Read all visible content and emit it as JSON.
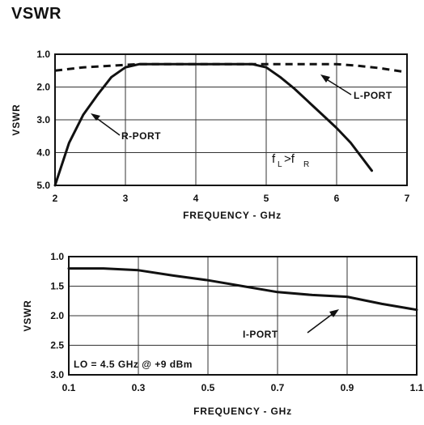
{
  "page_title": "VSWR",
  "chart_data": [
    {
      "type": "line",
      "title": "",
      "xlabel": "FREQUENCY - GHz",
      "ylabel": "VSWR",
      "xlim": [
        2,
        7
      ],
      "ylim": [
        1.0,
        5.0
      ],
      "y_inverted": true,
      "grid": true,
      "x_ticks": [
        "2",
        "3",
        "4",
        "5",
        "6",
        "7"
      ],
      "y_ticks": [
        "1.0",
        "2.0",
        "3.0",
        "4.0",
        "5.0"
      ],
      "series": [
        {
          "name": "R-PORT",
          "style": "solid",
          "x": [
            2.0,
            2.2,
            2.4,
            2.6,
            2.8,
            3.0,
            3.2,
            3.6,
            4.0,
            4.4,
            4.8,
            5.0,
            5.2,
            5.4,
            5.6,
            5.8,
            6.0,
            6.2,
            6.5
          ],
          "y": [
            5.0,
            3.7,
            2.85,
            2.25,
            1.7,
            1.4,
            1.3,
            1.3,
            1.3,
            1.3,
            1.3,
            1.4,
            1.7,
            2.05,
            2.45,
            2.85,
            3.25,
            3.7,
            4.55
          ]
        },
        {
          "name": "L-PORT",
          "style": "dashed",
          "x": [
            2.0,
            2.4,
            2.8,
            3.2,
            4.0,
            5.0,
            5.6,
            6.0,
            6.3,
            6.6,
            7.0
          ],
          "y": [
            1.5,
            1.4,
            1.35,
            1.3,
            1.3,
            1.3,
            1.3,
            1.3,
            1.35,
            1.42,
            1.55
          ]
        }
      ],
      "annotations": [
        "R-PORT",
        "L-PORT",
        "f",
        "L",
        ">f",
        "R"
      ]
    },
    {
      "type": "line",
      "title": "",
      "xlabel": "FREQUENCY - GHz",
      "ylabel": "VSWR",
      "xlim": [
        0.1,
        1.1
      ],
      "ylim": [
        1.0,
        3.0
      ],
      "y_inverted": true,
      "grid": true,
      "x_ticks": [
        "0.1",
        "0.3",
        "0.5",
        "0.7",
        "0.9",
        "1.1"
      ],
      "y_ticks": [
        "1.0",
        "1.5",
        "2.0",
        "2.5",
        "3.0"
      ],
      "series": [
        {
          "name": "I-PORT",
          "style": "solid",
          "x": [
            0.1,
            0.2,
            0.3,
            0.4,
            0.5,
            0.6,
            0.7,
            0.8,
            0.9,
            1.0,
            1.1
          ],
          "y": [
            1.2,
            1.2,
            1.23,
            1.32,
            1.4,
            1.5,
            1.6,
            1.65,
            1.68,
            1.8,
            1.9
          ]
        }
      ],
      "annotations": [
        "I-PORT",
        "LO = 4.5 GHz @ +9 dBm"
      ]
    }
  ]
}
